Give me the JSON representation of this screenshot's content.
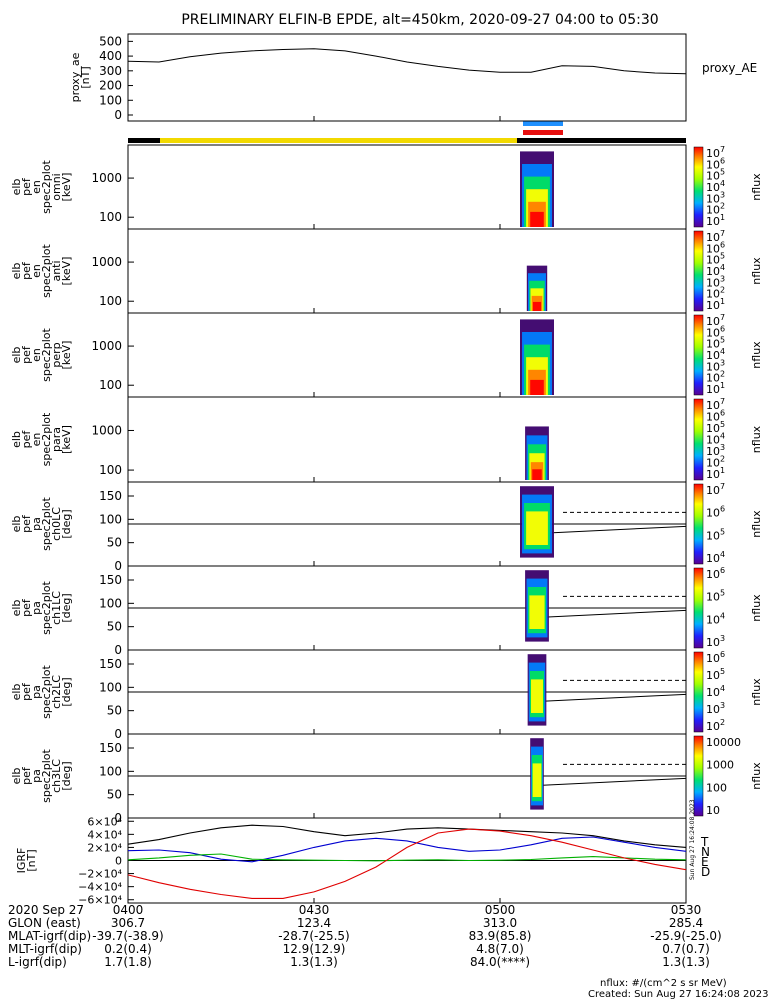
{
  "title": "PRELIMINARY ELFIN-B EPDE, alt=450km, 2020-09-27 04:00 to 05:30",
  "colors": {
    "yellow": "#f2d900",
    "black": "#000000",
    "blue": "#1e90ff",
    "red": "#e81010",
    "grf_t": "#000000",
    "grf_n": "#0000d0",
    "grf_e": "#00b000",
    "grf_d": "#e00000"
  },
  "chart_data": [
    {
      "type": "line",
      "name": "proxy_ae",
      "ylabel": [
        "proxy_ae",
        "[nT]"
      ],
      "legend": "proxy_AE",
      "yticks": [
        "500",
        "400",
        "300",
        "200",
        "100",
        "0"
      ],
      "ylim": [
        0,
        550
      ],
      "x_minutes": [
        0,
        5,
        10,
        15,
        20,
        25,
        30,
        35,
        40,
        45,
        50,
        55,
        60,
        65,
        70,
        75,
        80,
        85,
        90
      ],
      "values": [
        365,
        360,
        395,
        420,
        435,
        445,
        450,
        435,
        400,
        360,
        330,
        305,
        290,
        290,
        335,
        330,
        300,
        285,
        280
      ]
    },
    {
      "type": "heatmap",
      "name": "elb pef en spec2plot omni",
      "ylabel": [
        "elb",
        "pef",
        "en",
        "spec2plot",
        "omni",
        "[keV]"
      ],
      "yticks": [
        "1000",
        "100"
      ],
      "yscale": "log",
      "ylim": [
        50,
        7000
      ],
      "zlabel": "nflux",
      "zticks": [
        "10^7",
        "10^6",
        "10^5",
        "10^4",
        "10^3",
        "10^2",
        "10^1"
      ]
    },
    {
      "type": "heatmap",
      "name": "elb pef en spec2plot anti",
      "ylabel": [
        "elb",
        "pef",
        "en",
        "spec2plot",
        "anti",
        "[keV]"
      ],
      "yticks": [
        "1000",
        "100"
      ],
      "yscale": "log",
      "ylim": [
        50,
        7000
      ],
      "zlabel": "nflux",
      "zticks": [
        "10^7",
        "10^6",
        "10^5",
        "10^4",
        "10^3",
        "10^2",
        "10^1"
      ]
    },
    {
      "type": "heatmap",
      "name": "elb pef en spec2plot perp",
      "ylabel": [
        "elb",
        "pef",
        "en",
        "spec2plot",
        "perp",
        "[keV]"
      ],
      "yticks": [
        "1000",
        "100"
      ],
      "yscale": "log",
      "ylim": [
        50,
        7000
      ],
      "zlabel": "nflux",
      "zticks": [
        "10^7",
        "10^6",
        "10^5",
        "10^4",
        "10^3",
        "10^2",
        "10^1"
      ]
    },
    {
      "type": "heatmap",
      "name": "elb pef en spec2plot para",
      "ylabel": [
        "elb",
        "pef",
        "en",
        "spec2plot",
        "para",
        "[keV]"
      ],
      "yticks": [
        "1000",
        "100"
      ],
      "yscale": "log",
      "ylim": [
        50,
        7000
      ],
      "zlabel": "nflux",
      "zticks": [
        "10^7",
        "10^6",
        "10^5",
        "10^4",
        "10^3",
        "10^2",
        "10^1"
      ]
    },
    {
      "type": "heatmap",
      "name": "elb pef pa spec2plot ch0LC",
      "ylabel": [
        "elb",
        "pef",
        "pa",
        "spec2plot",
        "ch0LC",
        "[deg]"
      ],
      "yticks": [
        "150",
        "100",
        "50",
        "0"
      ],
      "ylim": [
        0,
        180
      ],
      "zlabel": "nflux",
      "zticks": [
        "10^7",
        "10^6",
        "10^5",
        "10^4"
      ]
    },
    {
      "type": "heatmap",
      "name": "elb pef pa spec2plot ch1LC",
      "ylabel": [
        "elb",
        "pef",
        "pa",
        "spec2plot",
        "ch1LC",
        "[deg]"
      ],
      "yticks": [
        "150",
        "100",
        "50",
        "0"
      ],
      "ylim": [
        0,
        180
      ],
      "zlabel": "nflux",
      "zticks": [
        "10^6",
        "10^5",
        "10^4",
        "10^3"
      ]
    },
    {
      "type": "heatmap",
      "name": "elb pef pa spec2plot ch2LC",
      "ylabel": [
        "elb",
        "pef",
        "pa",
        "spec2plot",
        "ch2LC",
        "[deg]"
      ],
      "yticks": [
        "150",
        "100",
        "50",
        "0"
      ],
      "ylim": [
        0,
        180
      ],
      "zlabel": "nflux",
      "zticks": [
        "10^6",
        "10^5",
        "10^4",
        "10^3",
        "10^2"
      ]
    },
    {
      "type": "heatmap",
      "name": "elb pef pa spec2plot ch3LC",
      "ylabel": [
        "elb",
        "pef",
        "pa",
        "spec2plot",
        "ch3LC",
        "[deg]"
      ],
      "yticks": [
        "150",
        "100",
        "50",
        "0"
      ],
      "ylim": [
        0,
        180
      ],
      "zlabel": "nflux",
      "zticks": [
        "10000",
        "1000",
        "100",
        "10"
      ]
    },
    {
      "type": "line",
      "name": "IGRF",
      "ylabel": [
        "IGRF",
        "[nT]"
      ],
      "yticks": [
        "6×10⁴",
        "4×10⁴",
        "2×10⁴",
        "0",
        "−2×10⁴",
        "−4×10⁴",
        "−6×10⁴"
      ],
      "ylim": [
        -65000,
        65000
      ],
      "legend_labels": [
        "T",
        "N",
        "E",
        "D"
      ],
      "x_minutes": [
        0,
        5,
        10,
        15,
        20,
        25,
        30,
        35,
        40,
        45,
        50,
        55,
        60,
        65,
        70,
        75,
        80,
        85,
        90
      ],
      "series": [
        {
          "name": "T",
          "values": [
            25000,
            32000,
            42000,
            50000,
            54000,
            52000,
            44000,
            38000,
            42000,
            48000,
            50000,
            48000,
            46000,
            44000,
            42000,
            38000,
            30000,
            24000,
            20000
          ]
        },
        {
          "name": "N",
          "values": [
            15000,
            16000,
            12000,
            2000,
            -2000,
            8000,
            20000,
            30000,
            34000,
            30000,
            20000,
            14000,
            16000,
            24000,
            34000,
            36000,
            28000,
            20000,
            14000
          ]
        },
        {
          "name": "E",
          "values": [
            1000,
            4000,
            8000,
            10000,
            2000,
            1000,
            500,
            0,
            -500,
            500,
            1000,
            0,
            500,
            1500,
            4000,
            6000,
            4000,
            2000,
            1000
          ]
        },
        {
          "name": "D",
          "values": [
            -22000,
            -34000,
            -44000,
            -52000,
            -58000,
            -58000,
            -48000,
            -32000,
            -10000,
            20000,
            42000,
            48000,
            45000,
            38000,
            28000,
            16000,
            4000,
            -6000,
            -14000
          ]
        }
      ]
    }
  ],
  "footer": {
    "row_labels": [
      "2020 Sep 27",
      "GLON (east)",
      "MLAT-igrf(dip)",
      "MLT-igrf(dip)",
      "L-igrf(dip)"
    ],
    "times": [
      "0400",
      "0430",
      "0500",
      "0530"
    ],
    "col_0400": [
      "306.7",
      "-39.7(-38.9)",
      "0.2(0.4)",
      "1.7(1.8)"
    ],
    "col_0430": [
      "123.4",
      "-28.7(-25.5)",
      "12.9(12.9)",
      "1.3(1.3)"
    ],
    "col_0500": [
      "313.0",
      "83.9(85.8)",
      "4.8(7.0)",
      "84.0(****)"
    ],
    "col_0530": [
      "285.4",
      "-25.9(-25.0)",
      "0.7(0.7)",
      "1.3(1.3)"
    ],
    "note1": "nflux: #/(cm^2 s sr MeV)",
    "note2": "Created: Sun Aug 27 16:24:08 2023",
    "vertical_stamp": "Sun Aug 27 16:24:08 2023"
  }
}
